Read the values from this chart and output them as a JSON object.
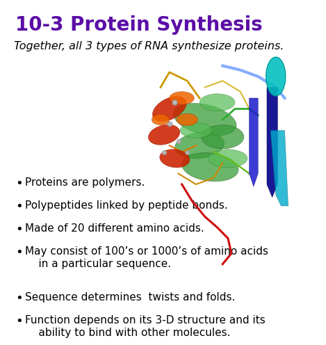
{
  "title": "10-3 Protein Synthesis",
  "title_color": "#5B0EA6",
  "title_fontsize": 20,
  "subtitle": "Together, all 3 types of RNA synthesize proteins.",
  "subtitle_fontsize": 11.5,
  "bullet_points": [
    "Proteins are polymers.",
    "Polypeptides linked by peptide bonds.",
    "Made of 20 different amino acids.",
    "May consist of 100’s or 1000’s of amino acids\n    in a particular sequence.",
    "Sequence determines  twists and folds.",
    "Function depends on its 3-D structure and its\n    ability to bind with other molecules."
  ],
  "bullet_fontsize": 11,
  "background_color": "#ffffff",
  "text_color": "#000000"
}
